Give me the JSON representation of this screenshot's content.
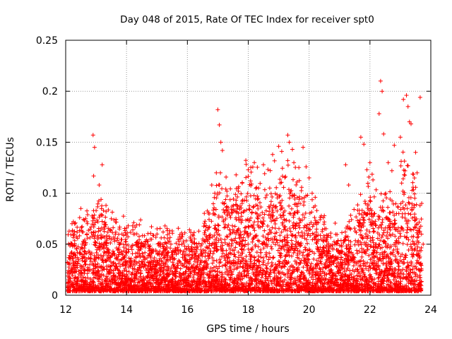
{
  "chart_data": {
    "type": "scatter",
    "title": "Day 048 of 2015, Rate Of TEC Index for receiver spt0",
    "xlabel": "GPS time / hours",
    "ylabel": "ROTI / TECUs",
    "xlim": [
      12,
      24
    ],
    "ylim": [
      0,
      0.25
    ],
    "xticks": [
      12,
      14,
      16,
      18,
      20,
      22,
      24
    ],
    "xtick_labels": [
      "12",
      "14",
      "16",
      "18",
      "20",
      "22",
      "24"
    ],
    "yticks": [
      0,
      0.05,
      0.1,
      0.15,
      0.2,
      0.25
    ],
    "ytick_labels": [
      "0",
      "0.05",
      "0.1",
      "0.15",
      "0.2",
      "0.25"
    ],
    "grid": true,
    "marker": "+",
    "marker_color": "#ff0000",
    "series": [
      {
        "name": "ROTI",
        "points": [
          [
            12.9,
            0.157
          ],
          [
            12.95,
            0.145
          ],
          [
            12.92,
            0.117
          ],
          [
            13.2,
            0.128
          ],
          [
            13.1,
            0.108
          ],
          [
            13.0,
            0.083
          ],
          [
            12.7,
            0.072
          ],
          [
            12.5,
            0.085
          ],
          [
            12.3,
            0.07
          ],
          [
            13.5,
            0.075
          ],
          [
            14.2,
            0.068
          ],
          [
            15.0,
            0.06
          ],
          [
            15.5,
            0.063
          ],
          [
            17.0,
            0.182
          ],
          [
            17.05,
            0.167
          ],
          [
            17.1,
            0.15
          ],
          [
            17.15,
            0.142
          ],
          [
            16.95,
            0.12
          ],
          [
            16.8,
            0.108
          ],
          [
            16.9,
            0.1
          ],
          [
            17.3,
            0.102
          ],
          [
            17.6,
            0.118
          ],
          [
            17.8,
            0.11
          ],
          [
            18.0,
            0.123
          ],
          [
            18.2,
            0.13
          ],
          [
            18.5,
            0.128
          ],
          [
            18.8,
            0.138
          ],
          [
            19.0,
            0.146
          ],
          [
            19.1,
            0.141
          ],
          [
            19.3,
            0.157
          ],
          [
            19.35,
            0.15
          ],
          [
            19.45,
            0.143
          ],
          [
            19.5,
            0.13
          ],
          [
            19.8,
            0.145
          ],
          [
            19.9,
            0.126
          ],
          [
            20.0,
            0.115
          ],
          [
            20.1,
            0.1
          ],
          [
            20.2,
            0.096
          ],
          [
            20.5,
            0.078
          ],
          [
            21.2,
            0.128
          ],
          [
            21.3,
            0.108
          ],
          [
            21.7,
            0.155
          ],
          [
            21.8,
            0.148
          ],
          [
            21.9,
            0.123
          ],
          [
            22.0,
            0.13
          ],
          [
            22.1,
            0.113
          ],
          [
            22.3,
            0.178
          ],
          [
            22.35,
            0.21
          ],
          [
            22.4,
            0.2
          ],
          [
            22.45,
            0.158
          ],
          [
            22.6,
            0.13
          ],
          [
            22.8,
            0.147
          ],
          [
            23.0,
            0.155
          ],
          [
            23.1,
            0.192
          ],
          [
            23.2,
            0.196
          ],
          [
            23.25,
            0.185
          ],
          [
            23.3,
            0.17
          ],
          [
            23.35,
            0.168
          ],
          [
            23.5,
            0.14
          ],
          [
            23.55,
            0.12
          ],
          [
            23.65,
            0.194
          ],
          [
            23.7,
            0.09
          ],
          [
            23.75,
            0.05
          ]
        ]
      }
    ]
  }
}
